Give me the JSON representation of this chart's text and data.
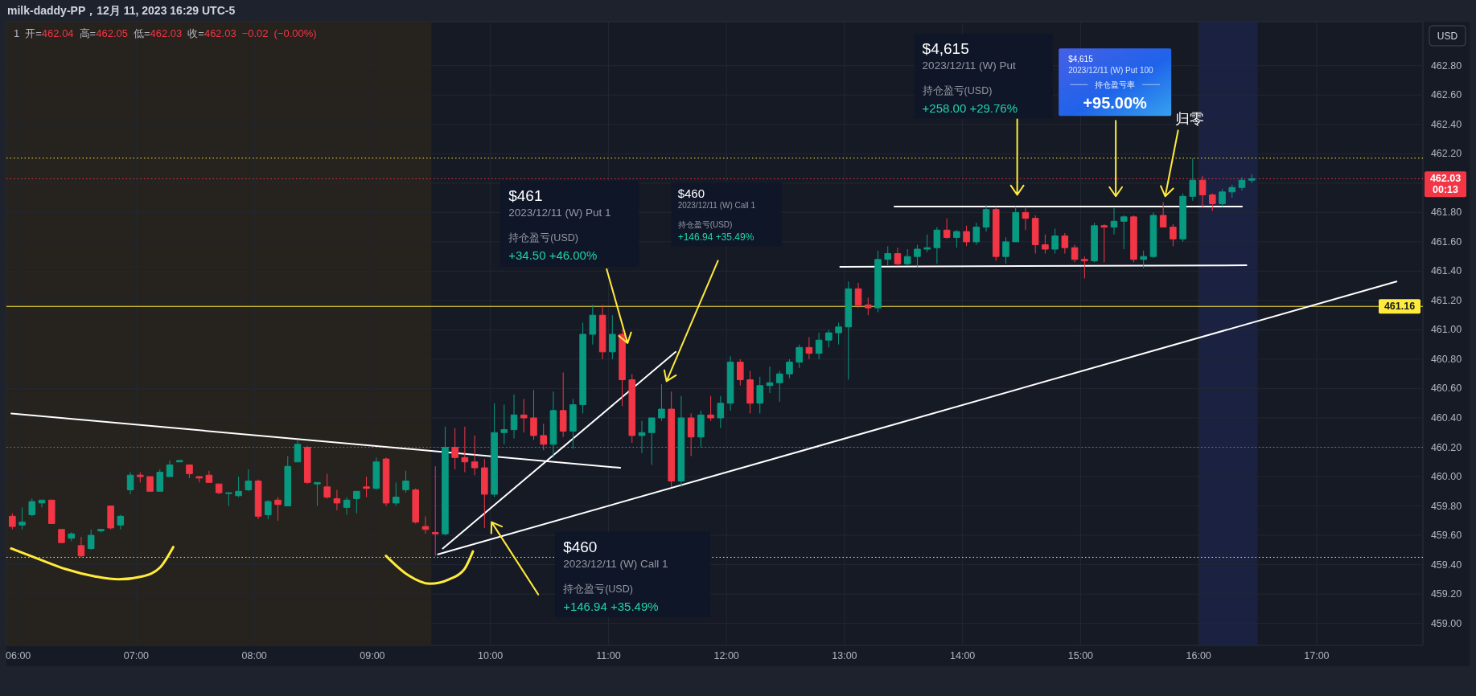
{
  "chart_data": {
    "type": "candlestick",
    "title": "milk-daddy-PP，12月 11, 2023 16:29 UTC-5",
    "subtitle": "1 开=462.04 高=462.05 低=462.03 收=462.03 −0.02 (−0.00%)",
    "ylabel": "USD",
    "xlim": [
      5.9,
      17.9
    ],
    "ylim": [
      458.85,
      463.1
    ],
    "xticks": [
      {
        "value": 6,
        "label": "06:00"
      },
      {
        "value": 7,
        "label": "07:00"
      },
      {
        "value": 8,
        "label": "08:00"
      },
      {
        "value": 9,
        "label": "09:00"
      },
      {
        "value": 10,
        "label": "10:00"
      },
      {
        "value": 11,
        "label": "11:00"
      },
      {
        "value": 12,
        "label": "12:00"
      },
      {
        "value": 13,
        "label": "13:00"
      },
      {
        "value": 14,
        "label": "14:00"
      },
      {
        "value": 15,
        "label": "15:00"
      },
      {
        "value": 16,
        "label": "16:00"
      },
      {
        "value": 17,
        "label": "17:00"
      }
    ],
    "yticks": [
      {
        "value": 459,
        "label": "459.00"
      },
      {
        "value": 459.2,
        "label": "459.20"
      },
      {
        "value": 459.4,
        "label": "459.40"
      },
      {
        "value": 459.6,
        "label": "459.60"
      },
      {
        "value": 459.8,
        "label": "459.80"
      },
      {
        "value": 460,
        "label": "460.00"
      },
      {
        "value": 460.2,
        "label": "460.20"
      },
      {
        "value": 460.4,
        "label": "460.40"
      },
      {
        "value": 460.6,
        "label": "460.60"
      },
      {
        "value": 460.8,
        "label": "460.80"
      },
      {
        "value": 461,
        "label": "461.00"
      },
      {
        "value": 461.2,
        "label": "461.20"
      },
      {
        "value": 461.4,
        "label": "461.40"
      },
      {
        "value": 461.6,
        "label": "461.60"
      },
      {
        "value": 461.8,
        "label": "461.80"
      },
      {
        "value": 462,
        "label": null
      },
      {
        "value": 462.2,
        "label": "462.20"
      },
      {
        "value": 462.4,
        "label": "462.40"
      },
      {
        "value": 462.6,
        "label": "462.60"
      },
      {
        "value": 462.8,
        "label": "462.80"
      }
    ],
    "grid": true,
    "x": [
      5.95,
      6.0333,
      6.1167,
      6.2,
      6.2833,
      6.3667,
      6.45,
      6.5333,
      6.6167,
      6.7,
      6.7833,
      6.8667,
      6.95,
      7.0333,
      7.1167,
      7.2,
      7.2833,
      7.3667,
      7.45,
      7.5333,
      7.6167,
      7.7,
      7.7833,
      7.8667,
      7.95,
      8.0333,
      8.1167,
      8.2,
      8.2833,
      8.3667,
      8.45,
      8.5333,
      8.6167,
      8.7,
      8.7833,
      8.8667,
      8.95,
      9.0333,
      9.1167,
      9.2,
      9.2833,
      9.3667,
      9.45,
      9.5333,
      9.6167,
      9.7,
      9.7833,
      9.8667,
      9.95,
      10.0333,
      10.1167,
      10.2,
      10.2833,
      10.3667,
      10.45,
      10.5333,
      10.6167,
      10.7,
      10.7833,
      10.8667,
      10.95,
      11.0333,
      11.1167,
      11.2,
      11.2833,
      11.3667,
      11.45,
      11.5333,
      11.6167,
      11.7,
      11.7833,
      11.8667,
      11.95,
      12.0333,
      12.1167,
      12.2,
      12.2833,
      12.3667,
      12.45,
      12.5333,
      12.6167,
      12.7,
      12.7833,
      12.8667,
      12.95,
      13.0333,
      13.1167,
      13.2,
      13.2833,
      13.3667,
      13.45,
      13.5333,
      13.6167,
      13.7,
      13.7833,
      13.8667,
      13.95,
      14.0333,
      14.1167,
      14.2,
      14.2833,
      14.3667,
      14.45,
      14.5333,
      14.6167,
      14.7,
      14.7833,
      14.8667,
      14.95,
      15.0333,
      15.1167,
      15.2,
      15.2833,
      15.3667,
      15.45,
      15.5333,
      15.6167,
      15.7,
      15.7833,
      15.8667,
      15.95,
      16.0333,
      16.1167,
      16.2,
      16.2833,
      16.3667,
      16.45
    ],
    "ohlc": [
      [
        459.73,
        459.75,
        459.64,
        459.66
      ],
      [
        459.67,
        459.79,
        459.64,
        459.69
      ],
      [
        459.74,
        459.85,
        459.73,
        459.83
      ],
      [
        459.82,
        459.84,
        459.79,
        459.84
      ],
      [
        459.84,
        459.84,
        459.68,
        459.68
      ],
      [
        459.64,
        459.64,
        459.55,
        459.55
      ],
      [
        459.58,
        459.62,
        459.56,
        459.61
      ],
      [
        459.53,
        459.59,
        459.45,
        459.46
      ],
      [
        459.51,
        459.64,
        459.5,
        459.6
      ],
      [
        459.63,
        459.64,
        459.62,
        459.64
      ],
      [
        459.8,
        459.8,
        459.64,
        459.65
      ],
      [
        459.67,
        459.74,
        459.64,
        459.73
      ],
      [
        459.91,
        460.03,
        459.88,
        460.01
      ],
      [
        460.01,
        460.03,
        459.96,
        460.0
      ],
      [
        460.0,
        460.0,
        459.9,
        459.9
      ],
      [
        459.9,
        460.05,
        459.9,
        460.03
      ],
      [
        460.0,
        460.11,
        460.0,
        460.08
      ],
      [
        460.1,
        460.11,
        460.1,
        460.11
      ],
      [
        460.08,
        460.08,
        459.99,
        460.02
      ],
      [
        460.0,
        460.0,
        459.96,
        459.99
      ],
      [
        460.01,
        460.04,
        459.96,
        459.96
      ],
      [
        459.95,
        459.95,
        459.88,
        459.89
      ],
      [
        459.89,
        459.89,
        459.8,
        459.89
      ],
      [
        459.87,
        460.0,
        459.86,
        459.9
      ],
      [
        459.91,
        460.05,
        459.9,
        459.97
      ],
      [
        459.97,
        459.98,
        459.71,
        459.73
      ],
      [
        459.74,
        459.84,
        459.71,
        459.83
      ],
      [
        459.84,
        459.86,
        459.7,
        459.81
      ],
      [
        459.8,
        460.14,
        459.8,
        460.07
      ],
      [
        460.1,
        460.25,
        460.1,
        460.22
      ],
      [
        460.2,
        460.21,
        459.95,
        459.96
      ],
      [
        459.95,
        459.96,
        459.8,
        459.96
      ],
      [
        459.93,
        460.02,
        459.85,
        459.86
      ],
      [
        459.85,
        459.91,
        459.77,
        459.82
      ],
      [
        459.79,
        459.86,
        459.74,
        459.84
      ],
      [
        459.85,
        459.9,
        459.75,
        459.9
      ],
      [
        459.93,
        460.0,
        459.86,
        459.92
      ],
      [
        459.92,
        460.13,
        459.91,
        460.1
      ],
      [
        460.12,
        460.13,
        459.8,
        459.82
      ],
      [
        459.82,
        459.96,
        459.8,
        459.86
      ],
      [
        459.91,
        460.04,
        459.89,
        459.97
      ],
      [
        459.91,
        459.92,
        459.68,
        459.69
      ],
      [
        459.66,
        459.73,
        459.61,
        459.64
      ],
      [
        459.62,
        460.07,
        459.46,
        459.61
      ],
      [
        459.61,
        460.34,
        459.6,
        460.2
      ],
      [
        460.2,
        460.33,
        460.05,
        460.13
      ],
      [
        460.13,
        460.34,
        460.03,
        460.1
      ],
      [
        460.1,
        460.28,
        460.01,
        460.06
      ],
      [
        460.06,
        460.12,
        459.65,
        459.88
      ],
      [
        459.88,
        460.5,
        459.86,
        460.3
      ],
      [
        460.3,
        460.49,
        460.22,
        460.32
      ],
      [
        460.32,
        460.56,
        460.26,
        460.42
      ],
      [
        460.42,
        460.53,
        460.3,
        460.4
      ],
      [
        460.4,
        460.59,
        460.25,
        460.28
      ],
      [
        460.28,
        460.36,
        460.18,
        460.22
      ],
      [
        460.22,
        460.58,
        460.13,
        460.45
      ],
      [
        460.45,
        460.71,
        460.27,
        460.31
      ],
      [
        460.31,
        460.53,
        460.19,
        460.49
      ],
      [
        460.49,
        461.05,
        460.43,
        460.97
      ],
      [
        460.97,
        461.17,
        460.9,
        461.1
      ],
      [
        461.1,
        461.17,
        460.8,
        460.85
      ],
      [
        460.85,
        461.1,
        460.8,
        460.97
      ],
      [
        460.97,
        461.0,
        460.48,
        460.66
      ],
      [
        460.66,
        460.7,
        460.23,
        460.28
      ],
      [
        460.28,
        460.38,
        460.16,
        460.3
      ],
      [
        460.3,
        460.4,
        460.08,
        460.4
      ],
      [
        460.4,
        460.63,
        460.38,
        460.46
      ],
      [
        460.46,
        460.58,
        459.93,
        459.97
      ],
      [
        459.97,
        460.55,
        459.93,
        460.4
      ],
      [
        460.4,
        460.43,
        460.14,
        460.27
      ],
      [
        460.27,
        460.45,
        460.2,
        460.42
      ],
      [
        460.42,
        460.55,
        460.38,
        460.4
      ],
      [
        460.4,
        460.55,
        460.33,
        460.5
      ],
      [
        460.5,
        460.82,
        460.45,
        460.78
      ],
      [
        460.78,
        460.8,
        460.62,
        460.66
      ],
      [
        460.66,
        460.72,
        460.43,
        460.5
      ],
      [
        460.5,
        460.68,
        460.43,
        460.62
      ],
      [
        460.62,
        460.75,
        460.57,
        460.64
      ],
      [
        460.64,
        460.72,
        460.51,
        460.7
      ],
      [
        460.7,
        460.8,
        460.67,
        460.78
      ],
      [
        460.78,
        460.9,
        460.74,
        460.88
      ],
      [
        460.88,
        460.95,
        460.8,
        460.84
      ],
      [
        460.84,
        460.98,
        460.8,
        460.93
      ],
      [
        460.93,
        461.0,
        460.88,
        460.98
      ],
      [
        460.98,
        461.05,
        460.9,
        461.02
      ],
      [
        461.02,
        461.33,
        460.66,
        461.28
      ],
      [
        461.28,
        461.32,
        461.15,
        461.17
      ],
      [
        461.17,
        461.22,
        461.1,
        461.15
      ],
      [
        461.15,
        461.54,
        461.12,
        461.48
      ],
      [
        461.48,
        461.57,
        461.44,
        461.52
      ],
      [
        461.52,
        461.56,
        461.44,
        461.45
      ],
      [
        461.45,
        461.55,
        461.44,
        461.5
      ],
      [
        461.5,
        461.58,
        461.43,
        461.55
      ],
      [
        461.55,
        461.65,
        461.53,
        461.56
      ],
      [
        461.56,
        461.7,
        461.45,
        461.68
      ],
      [
        461.68,
        461.76,
        461.62,
        461.63
      ],
      [
        461.63,
        461.68,
        461.56,
        461.67
      ],
      [
        461.67,
        461.71,
        461.57,
        461.6
      ],
      [
        461.6,
        461.73,
        461.58,
        461.7
      ],
      [
        461.7,
        461.85,
        461.67,
        461.82
      ],
      [
        461.82,
        461.84,
        461.47,
        461.5
      ],
      [
        461.5,
        461.63,
        461.45,
        461.6
      ],
      [
        461.6,
        461.84,
        461.6,
        461.8
      ],
      [
        461.8,
        461.84,
        461.68,
        461.76
      ],
      [
        461.76,
        461.78,
        461.52,
        461.58
      ],
      [
        461.58,
        461.65,
        461.52,
        461.55
      ],
      [
        461.55,
        461.69,
        461.52,
        461.64
      ],
      [
        461.64,
        461.66,
        461.52,
        461.56
      ],
      [
        461.56,
        461.58,
        461.46,
        461.48
      ],
      [
        461.48,
        461.5,
        461.35,
        461.47
      ],
      [
        461.47,
        461.73,
        461.46,
        461.71
      ],
      [
        461.71,
        461.72,
        461.46,
        461.7
      ],
      [
        461.7,
        461.83,
        461.65,
        461.74
      ],
      [
        461.74,
        461.78,
        461.55,
        461.77
      ],
      [
        461.77,
        461.78,
        461.46,
        461.48
      ],
      [
        461.48,
        461.54,
        461.42,
        461.5
      ],
      [
        461.5,
        461.8,
        461.49,
        461.78
      ],
      [
        461.78,
        461.87,
        461.7,
        461.7
      ],
      [
        461.7,
        461.72,
        461.57,
        461.62
      ],
      [
        461.62,
        461.93,
        461.6,
        461.91
      ],
      [
        461.91,
        462.17,
        461.88,
        462.02
      ],
      [
        462.02,
        462.05,
        461.83,
        461.92
      ],
      [
        461.92,
        461.93,
        461.81,
        461.86
      ],
      [
        461.86,
        461.96,
        461.84,
        461.94
      ],
      [
        461.94,
        461.99,
        461.9,
        461.97
      ],
      [
        461.97,
        462.04,
        461.95,
        462.02
      ],
      [
        462.02,
        462.06,
        462.0,
        462.03
      ]
    ],
    "colors": [
      "#f23645",
      "#089981",
      "#089981",
      "#089981",
      "#f23645",
      "#f23645",
      "#089981",
      "#f23645",
      "#089981",
      "#089981",
      "#f23645",
      "#089981",
      "#089981",
      "#f23645",
      "#f23645",
      "#089981",
      "#089981",
      "#089981",
      "#f23645",
      "#f23645",
      "#f23645",
      "#f23645",
      "#089981",
      "#089981",
      "#089981",
      "#f23645",
      "#089981",
      "#f23645",
      "#089981",
      "#089981",
      "#f23645",
      "#089981",
      "#f23645",
      "#f23645",
      "#089981",
      "#089981",
      "#f23645",
      "#089981",
      "#f23645",
      "#089981",
      "#089981",
      "#f23645",
      "#f23645",
      "#f23645",
      "#089981",
      "#f23645",
      "#f23645",
      "#f23645",
      "#f23645",
      "#089981",
      "#089981",
      "#089981",
      "#f23645",
      "#f23645",
      "#f23645",
      "#089981",
      "#f23645",
      "#089981",
      "#089981",
      "#089981",
      "#f23645",
      "#089981",
      "#f23645",
      "#f23645",
      "#089981",
      "#089981",
      "#089981",
      "#f23645",
      "#089981",
      "#f23645",
      "#089981",
      "#f23645",
      "#089981",
      "#089981",
      "#f23645",
      "#f23645",
      "#089981",
      "#089981",
      "#089981",
      "#089981",
      "#089981",
      "#f23645",
      "#089981",
      "#089981",
      "#089981",
      "#089981",
      "#f23645",
      "#f23645",
      "#089981",
      "#089981",
      "#f23645",
      "#089981",
      "#089981",
      "#089981",
      "#089981",
      "#f23645",
      "#089981",
      "#f23645",
      "#089981",
      "#089981",
      "#f23645",
      "#089981",
      "#089981",
      "#f23645",
      "#f23645",
      "#f23645",
      "#089981",
      "#f23645",
      "#f23645",
      "#f23645",
      "#089981",
      "#f23645",
      "#089981",
      "#089981",
      "#f23645",
      "#089981",
      "#089981",
      "#f23645",
      "#f23645",
      "#089981",
      "#089981",
      "#f23645",
      "#f23645",
      "#089981",
      "#089981",
      "#089981",
      "#089981"
    ],
    "series": [
      {
        "type": "line",
        "color": "#ffffff",
        "x": [
          5.9417,
          11.1
        ],
        "values": [
          460.43,
          460.06
        ]
      },
      {
        "type": "line",
        "color": "#ffffff",
        "x": [
          9.597,
          11.57
        ],
        "values": [
          459.51,
          460.85
        ]
      },
      {
        "type": "line",
        "color": "#ffffff",
        "x": [
          9.555,
          17.677
        ],
        "values": [
          459.47,
          461.33
        ]
      },
      {
        "type": "line",
        "color": "#ffffff",
        "x": [
          13.423,
          16.367
        ],
        "values": [
          461.84,
          461.84
        ]
      },
      {
        "type": "line",
        "color": "#ffffff",
        "x": [
          12.963,
          16.405
        ],
        "values": [
          461.43,
          461.44
        ]
      },
      {
        "type": "line",
        "color": "#ffeb3b",
        "x": [
          5.94,
          6.2,
          6.4,
          6.65,
          6.85,
          7.05,
          7.2,
          7.313
        ],
        "values": [
          459.51,
          459.43,
          459.37,
          459.32,
          459.3,
          459.32,
          459.38,
          459.52
        ]
      },
      {
        "type": "line",
        "color": "#ffeb3b",
        "x": [
          9.115,
          9.3,
          9.486,
          9.65,
          9.78,
          9.852
        ],
        "values": [
          459.46,
          459.33,
          459.27,
          459.3,
          459.37,
          459.49
        ]
      }
    ],
    "ref_lines": [
      {
        "axis": "y",
        "value": 462.17,
        "color": "#ffeb3b",
        "line_style": "dotted"
      },
      {
        "axis": "y",
        "value": 462.03,
        "label": "462.03\n00:13",
        "color": "#f23645",
        "line_style": "dotted"
      },
      {
        "axis": "y",
        "value": 461.16,
        "label": "461.16",
        "color": "#ffeb3b"
      },
      {
        "axis": "y",
        "value": 460.2,
        "color": "#787b86",
        "line_style": "dotted"
      },
      {
        "axis": "y",
        "value": 459.45,
        "color": "#ffeb3b",
        "line_style": "dotted"
      }
    ],
    "bands": [
      {
        "axis": "x",
        "from": 5.9,
        "to": 9.5,
        "color": "#26221d"
      },
      {
        "axis": "x",
        "from": 16,
        "to": 16.5,
        "color": "#1b2140"
      }
    ],
    "annotations": [
      "$461",
      "2023/12/11 (W) Put 1",
      "持仓盈亏(USD)",
      {
        "text": "+34.50 +46.00%",
        "x": 11.162,
        "y": 460.91
      },
      "$460",
      "2023/12/11 (W) Call 1",
      "持仓盈亏(USD)",
      "+146.94 +35.49%",
      "$460",
      "2023/12/11 (W) Call 1",
      "持仓盈亏(USD)",
      "+146.94 +35.49%",
      "$4,615",
      "2023/12/11 (W) Put",
      "持仓盈亏(USD)",
      "+258.00 +29.76%",
      "$4,615",
      "2023/12/11 (W) Put 100",
      "持仓盈亏率",
      "+95.00%",
      "归零"
    ]
  }
}
